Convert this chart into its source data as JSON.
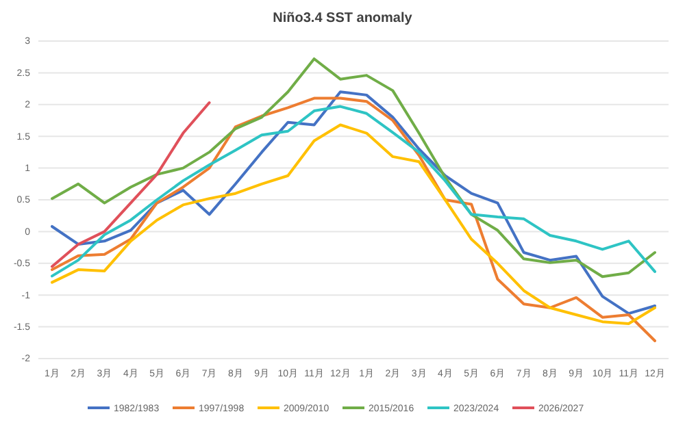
{
  "chart_data": {
    "type": "line",
    "title": "Niño3.4 SST anomaly",
    "categories": [
      "1月",
      "2月",
      "3月",
      "4月",
      "5月",
      "6月",
      "7月",
      "8月",
      "9月",
      "10月",
      "11月",
      "12月",
      "1月",
      "2月",
      "3月",
      "4月",
      "5月",
      "6月",
      "7月",
      "8月",
      "9月",
      "10月",
      "11月",
      "12月"
    ],
    "series": [
      {
        "name": "1982/1983",
        "color": "#4472c4",
        "values": [
          0.08,
          -0.2,
          -0.15,
          0.02,
          0.45,
          0.65,
          0.27,
          0.75,
          1.25,
          1.72,
          1.68,
          2.2,
          2.15,
          1.8,
          1.3,
          0.88,
          0.6,
          0.45,
          -0.33,
          -0.45,
          -0.39,
          -1.02,
          -1.29,
          -1.17
        ]
      },
      {
        "name": "1997/1998",
        "color": "#ed7d31",
        "values": [
          -0.6,
          -0.38,
          -0.36,
          -0.12,
          0.45,
          0.7,
          1.0,
          1.65,
          1.82,
          1.95,
          2.1,
          2.1,
          2.05,
          1.75,
          1.2,
          0.5,
          0.43,
          -0.75,
          -1.14,
          -1.2,
          -1.04,
          -1.35,
          -1.31,
          -1.72
        ]
      },
      {
        "name": "2009/2010",
        "color": "#ffc000",
        "values": [
          -0.8,
          -0.6,
          -0.62,
          -0.15,
          0.18,
          0.42,
          0.52,
          0.6,
          0.75,
          0.88,
          1.43,
          1.68,
          1.55,
          1.18,
          1.1,
          0.5,
          -0.12,
          -0.5,
          -0.93,
          -1.2,
          -1.31,
          -1.42,
          -1.45,
          -1.2
        ]
      },
      {
        "name": "2015/2016",
        "color": "#70ad47",
        "values": [
          0.52,
          0.75,
          0.45,
          0.7,
          0.9,
          1.0,
          1.25,
          1.62,
          1.8,
          2.2,
          2.72,
          2.4,
          2.46,
          2.22,
          1.55,
          0.85,
          0.27,
          0.02,
          -0.43,
          -0.49,
          -0.45,
          -0.71,
          -0.65,
          -0.33
        ]
      },
      {
        "name": "2023/2024",
        "color": "#2ec4c4",
        "values": [
          -0.7,
          -0.45,
          -0.05,
          0.18,
          0.5,
          0.8,
          1.05,
          1.28,
          1.52,
          1.58,
          1.9,
          1.97,
          1.86,
          1.56,
          1.25,
          0.8,
          0.27,
          0.23,
          0.2,
          -0.06,
          -0.15,
          -0.28,
          -0.15,
          -0.63
        ]
      },
      {
        "name": "2026/2027",
        "color": "#e0505a",
        "values": [
          -0.55,
          -0.2,
          0.0,
          0.45,
          0.9,
          1.55,
          2.03,
          null,
          null,
          null,
          null,
          null,
          null,
          null,
          null,
          null,
          null,
          null,
          null,
          null,
          null,
          null,
          null,
          null
        ]
      }
    ],
    "ylim": [
      -2,
      3
    ],
    "yticks": [
      -2,
      -1.5,
      -1,
      -0.5,
      0,
      0.5,
      1,
      1.5,
      2,
      2.5,
      3
    ],
    "grid": "y",
    "legend": "bottom",
    "line_style": "solid",
    "marker": "none"
  }
}
